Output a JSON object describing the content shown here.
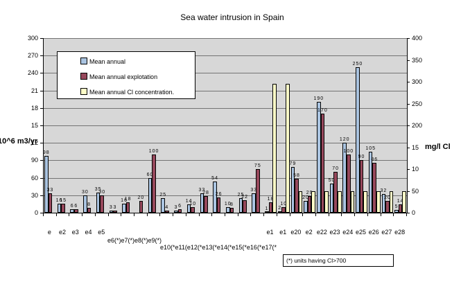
{
  "title": "Sea water intrusion in Spain",
  "left_axis": {
    "title": "10^6 m3/yr",
    "tick_labels": [
      "300",
      "270",
      "240",
      "21",
      "18",
      "15",
      "12",
      "90",
      "60",
      "30",
      "0"
    ],
    "ylim": [
      0,
      300
    ]
  },
  "right_axis": {
    "title": "mg/l Cl",
    "tick_labels": [
      "400",
      "350",
      "300",
      "250",
      "200",
      "15",
      "10",
      "50",
      "0"
    ],
    "ylim": [
      0,
      400
    ]
  },
  "legend": {
    "items": [
      {
        "label": "Mean annual",
        "color": "#aac4e1"
      },
      {
        "label": "Mean annual explotation",
        "color": "#97485c"
      },
      {
        "label": "Mean annual Cl concentration.",
        "color": "#ffffc9"
      }
    ]
  },
  "x_axis": {
    "row1_left": [
      "e",
      "e2",
      "e3",
      "e4",
      "e5"
    ],
    "row1_right": [
      "e1",
      "e1",
      "e20",
      "e2",
      "e22",
      "e23",
      "e24",
      "e25",
      "e26",
      "e27",
      "e28"
    ],
    "row2": "e6(*)e7(*)e8(*)e9(*)",
    "row3": "e10(*e11(e12(*e13(*e14(*e15(*e16(*e17(*"
  },
  "footnote": "(*) units having Cl>700",
  "chart_data": {
    "type": "bar",
    "title": "Sea water intrusion in Spain",
    "categories": [
      "e",
      "e2",
      "e3",
      "e4",
      "e5",
      "e6(*)",
      "e7(*)",
      "e8(*)",
      "e9(*)",
      "e10(*)",
      "e11(*)",
      "e12(*)",
      "e13(*)",
      "e14(*)",
      "e15(*)",
      "e16(*)",
      "e17(*)",
      "e1",
      "e1",
      "e20",
      "e2",
      "e22",
      "e23",
      "e24",
      "e25",
      "e26",
      "e27",
      "e28"
    ],
    "left_ylabel": "10^6 m3/yr",
    "right_ylabel": "mg/l Cl",
    "left_ylim": [
      0,
      300
    ],
    "right_ylim": [
      0,
      400
    ],
    "grid": true,
    "legend_position": "upper-left-inside",
    "series": [
      {
        "name": "Mean annual",
        "axis": "left",
        "color": "#aac4e1",
        "values": [
          98,
          16,
          6,
          30,
          35,
          3,
          16,
          0,
          60,
          25,
          3,
          14,
          33,
          54,
          10,
          25,
          33,
          1,
          2,
          79,
          20,
          190,
          50,
          120,
          250,
          105,
          32,
          5
        ]
      },
      {
        "name": "Mean annual explotation",
        "axis": "left",
        "color": "#97485c",
        "values": [
          33,
          15,
          6,
          8,
          30,
          3,
          18,
          20,
          100,
          4,
          6,
          10,
          28,
          26,
          8,
          22,
          75,
          18,
          10,
          58,
          29,
          170,
          70,
          100,
          90,
          86,
          20,
          14
        ]
      },
      {
        "name": "Mean annual Cl concentration.",
        "axis": "right",
        "color": "#ffffc9",
        "values": [
          0,
          0,
          0,
          0,
          0,
          0,
          0,
          0,
          0,
          0,
          0,
          0,
          0,
          0,
          0,
          0,
          0,
          295,
          295,
          50,
          50,
          50,
          50,
          50,
          50,
          50,
          50,
          50
        ]
      }
    ]
  }
}
